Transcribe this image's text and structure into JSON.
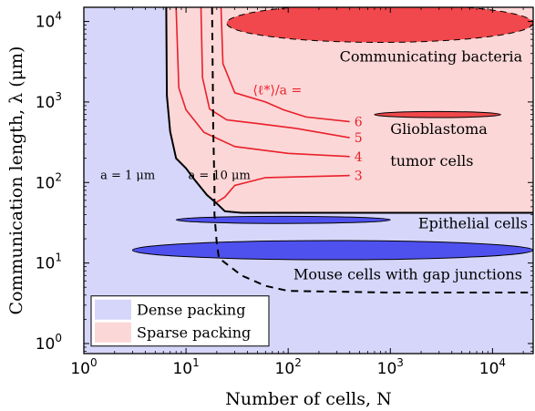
{
  "chart_data": {
    "type": "area",
    "title": "",
    "xlabel": "Number of cells, N",
    "ylabel": "Communication length, λ (μm)",
    "xscale": "log",
    "yscale": "log",
    "xlim": [
      1,
      25000
    ],
    "ylim": [
      0.75,
      15000
    ],
    "x_ticks": [
      {
        "value": 1,
        "label": "10",
        "exp": "0"
      },
      {
        "value": 10,
        "label": "10",
        "exp": "1"
      },
      {
        "value": 100,
        "label": "10",
        "exp": "2"
      },
      {
        "value": 1000,
        "label": "10",
        "exp": "3"
      },
      {
        "value": 10000,
        "label": "10",
        "exp": "4"
      }
    ],
    "y_ticks": [
      {
        "value": 1,
        "label": "10",
        "exp": "0"
      },
      {
        "value": 10,
        "label": "10",
        "exp": "1"
      },
      {
        "value": 100,
        "label": "10",
        "exp": "2"
      },
      {
        "value": 1000,
        "label": "10",
        "exp": "3"
      },
      {
        "value": 10000,
        "label": "10",
        "exp": "4"
      }
    ],
    "grid": false,
    "legend": {
      "placement": "bottom-left",
      "entries": [
        {
          "label": "Dense packing",
          "color": "#d6d6fb"
        },
        {
          "label": "Sparse packing",
          "color": "#fcd7d7"
        }
      ]
    },
    "colors": {
      "dense": "#d6d6fb",
      "sparse": "#fcd7d7",
      "red_region": "#f0484c",
      "blue_region": "#4f51ee",
      "contour": "#e8202b",
      "boundary": "#000000"
    },
    "boundaries": [
      {
        "label": "a = 10 μm",
        "style": "solid",
        "points": [
          [
            6.4,
            15000
          ],
          [
            6.5,
            1200
          ],
          [
            7,
            430
          ],
          [
            8,
            200
          ],
          [
            10,
            150
          ],
          [
            12,
            110
          ],
          [
            16,
            70
          ],
          [
            20,
            55
          ],
          [
            24,
            44
          ],
          [
            35,
            42
          ],
          [
            200,
            42
          ],
          [
            25000,
            42
          ]
        ]
      },
      {
        "label": "a = 1 μm",
        "style": "dashed",
        "points": [
          [
            18,
            15000
          ],
          [
            18.5,
            440
          ],
          [
            19,
            90
          ],
          [
            19,
            40
          ],
          [
            20,
            18
          ],
          [
            21,
            11.5
          ],
          [
            35,
            7
          ],
          [
            60,
            5.2
          ],
          [
            100,
            4.5
          ],
          [
            1000,
            4.3
          ],
          [
            25000,
            4.3
          ]
        ]
      }
    ],
    "contour_label": "⟨ℓ*⟩/a =",
    "contours": [
      {
        "label": "6",
        "points": [
          [
            22,
            15000
          ],
          [
            23,
            3000
          ],
          [
            30,
            1300
          ],
          [
            60,
            1000
          ],
          [
            90,
            800
          ],
          [
            150,
            650
          ],
          [
            400,
            570
          ]
        ]
      },
      {
        "label": "5",
        "points": [
          [
            14,
            15000
          ],
          [
            14.5,
            2000
          ],
          [
            17,
            820
          ],
          [
            25,
            600
          ],
          [
            50,
            540
          ],
          [
            120,
            470
          ],
          [
            400,
            360
          ]
        ]
      },
      {
        "label": "4",
        "points": [
          [
            8,
            15000
          ],
          [
            8.5,
            1500
          ],
          [
            10,
            800
          ],
          [
            15,
            420
          ],
          [
            30,
            280
          ],
          [
            100,
            230
          ],
          [
            400,
            210
          ]
        ]
      },
      {
        "label": "3",
        "points": [
          [
            20,
            57
          ],
          [
            24,
            66
          ],
          [
            30,
            92
          ],
          [
            60,
            115
          ],
          [
            400,
            122
          ]
        ]
      }
    ],
    "regions": [
      {
        "label": "Communicating bacteria",
        "kind": "red",
        "x": [
          25,
          25000
        ],
        "y": [
          5500,
          16500
        ],
        "note": "ellipse edge dashed"
      },
      {
        "label": "Glioblastoma tumor cells",
        "kind": "red",
        "x": [
          700,
          12000
        ],
        "y": [
          640,
          760
        ]
      },
      {
        "label": "Epithelial cells",
        "kind": "blue",
        "x": [
          8,
          1000
        ],
        "y": [
          31,
          38
        ]
      },
      {
        "label": "Mouse cells with gap junctions",
        "kind": "blue",
        "x": [
          3,
          25000
        ],
        "y": [
          11,
          19
        ]
      }
    ]
  }
}
